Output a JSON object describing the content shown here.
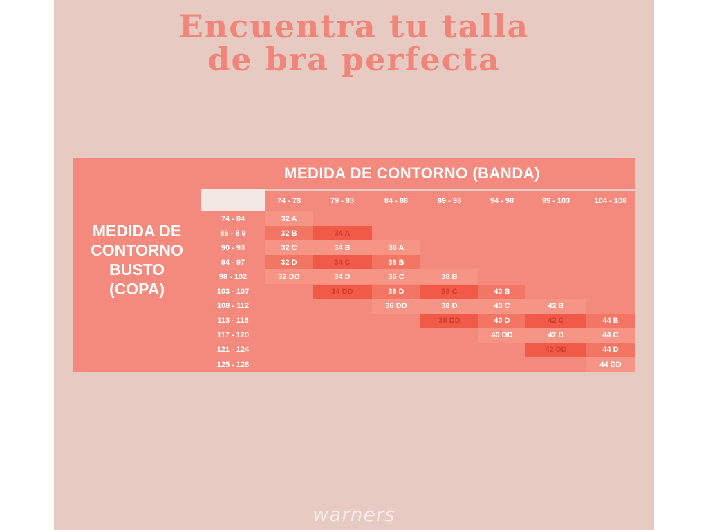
{
  "title": {
    "line1": "Encuentra tu talla",
    "line2": "de bra perfecta"
  },
  "band_label": "MEDIDA DE CONTORNO (BANDA)",
  "bust_label": [
    "MEDIDA DE",
    "CONTORNO",
    "BUSTO",
    "(COPA)"
  ],
  "band_ranges": [
    "74 - 78",
    "79 - 83",
    "84 - 88",
    "89 - 93",
    "94 - 98",
    "99 - 103",
    "104 - 108"
  ],
  "bust_ranges": [
    "74 - 84",
    "86 - 8 9",
    "90 - 93",
    "94 - 97",
    "98 - 102",
    "103 - 107",
    "108 - 112",
    "113 - 116",
    "117 - 120",
    "121 - 124",
    "125 - 128"
  ],
  "sizes": [
    [
      {
        "c": 0,
        "v": "32 A",
        "t": "lt"
      }
    ],
    [
      {
        "c": 0,
        "v": "32 B",
        "t": "md"
      },
      {
        "c": 1,
        "v": "34 A",
        "t": "dk"
      }
    ],
    [
      {
        "c": 0,
        "v": "32 C",
        "t": "lt"
      },
      {
        "c": 1,
        "v": "34 B",
        "t": "lt"
      },
      {
        "c": 2,
        "v": "36 A",
        "t": "lt"
      }
    ],
    [
      {
        "c": 0,
        "v": "32 D",
        "t": "md"
      },
      {
        "c": 1,
        "v": "34 C",
        "t": "dk"
      },
      {
        "c": 2,
        "v": "36 B",
        "t": "md"
      }
    ],
    [
      {
        "c": 0,
        "v": "32 DD",
        "t": "lt"
      },
      {
        "c": 1,
        "v": "34 D",
        "t": "lt"
      },
      {
        "c": 2,
        "v": "36 C",
        "t": "lt"
      },
      {
        "c": 3,
        "v": "38 B",
        "t": "lt"
      }
    ],
    [
      {
        "c": 1,
        "v": "34 DD",
        "t": "dk"
      },
      {
        "c": 2,
        "v": "36 D",
        "t": "md"
      },
      {
        "c": 3,
        "v": "38 C",
        "t": "dk"
      },
      {
        "c": 4,
        "v": "40 B",
        "t": "md"
      }
    ],
    [
      {
        "c": 2,
        "v": "36 DD",
        "t": "lt"
      },
      {
        "c": 3,
        "v": "38 D",
        "t": "lt"
      },
      {
        "c": 4,
        "v": "40 C",
        "t": "lt"
      },
      {
        "c": 5,
        "v": "42 B",
        "t": "lt"
      }
    ],
    [
      {
        "c": 3,
        "v": "38 DD",
        "t": "dk"
      },
      {
        "c": 4,
        "v": "40 D",
        "t": "md"
      },
      {
        "c": 5,
        "v": "42 C",
        "t": "dk"
      },
      {
        "c": 6,
        "v": "44 B",
        "t": "md"
      }
    ],
    [
      {
        "c": 4,
        "v": "40 DD",
        "t": "lt"
      },
      {
        "c": 5,
        "v": "42 D",
        "t": "lt"
      },
      {
        "c": 6,
        "v": "44 C",
        "t": "lt"
      }
    ],
    [
      {
        "c": 5,
        "v": "42 DD",
        "t": "dk"
      },
      {
        "c": 6,
        "v": "44 D",
        "t": "md"
      }
    ],
    [
      {
        "c": 6,
        "v": "44 DD",
        "t": "lt"
      }
    ]
  ],
  "logo": "warners",
  "colors": {
    "background": "#e7cbc3",
    "accent": "#f48a7d",
    "dark": "#f15a47",
    "title": "#f0857a"
  }
}
